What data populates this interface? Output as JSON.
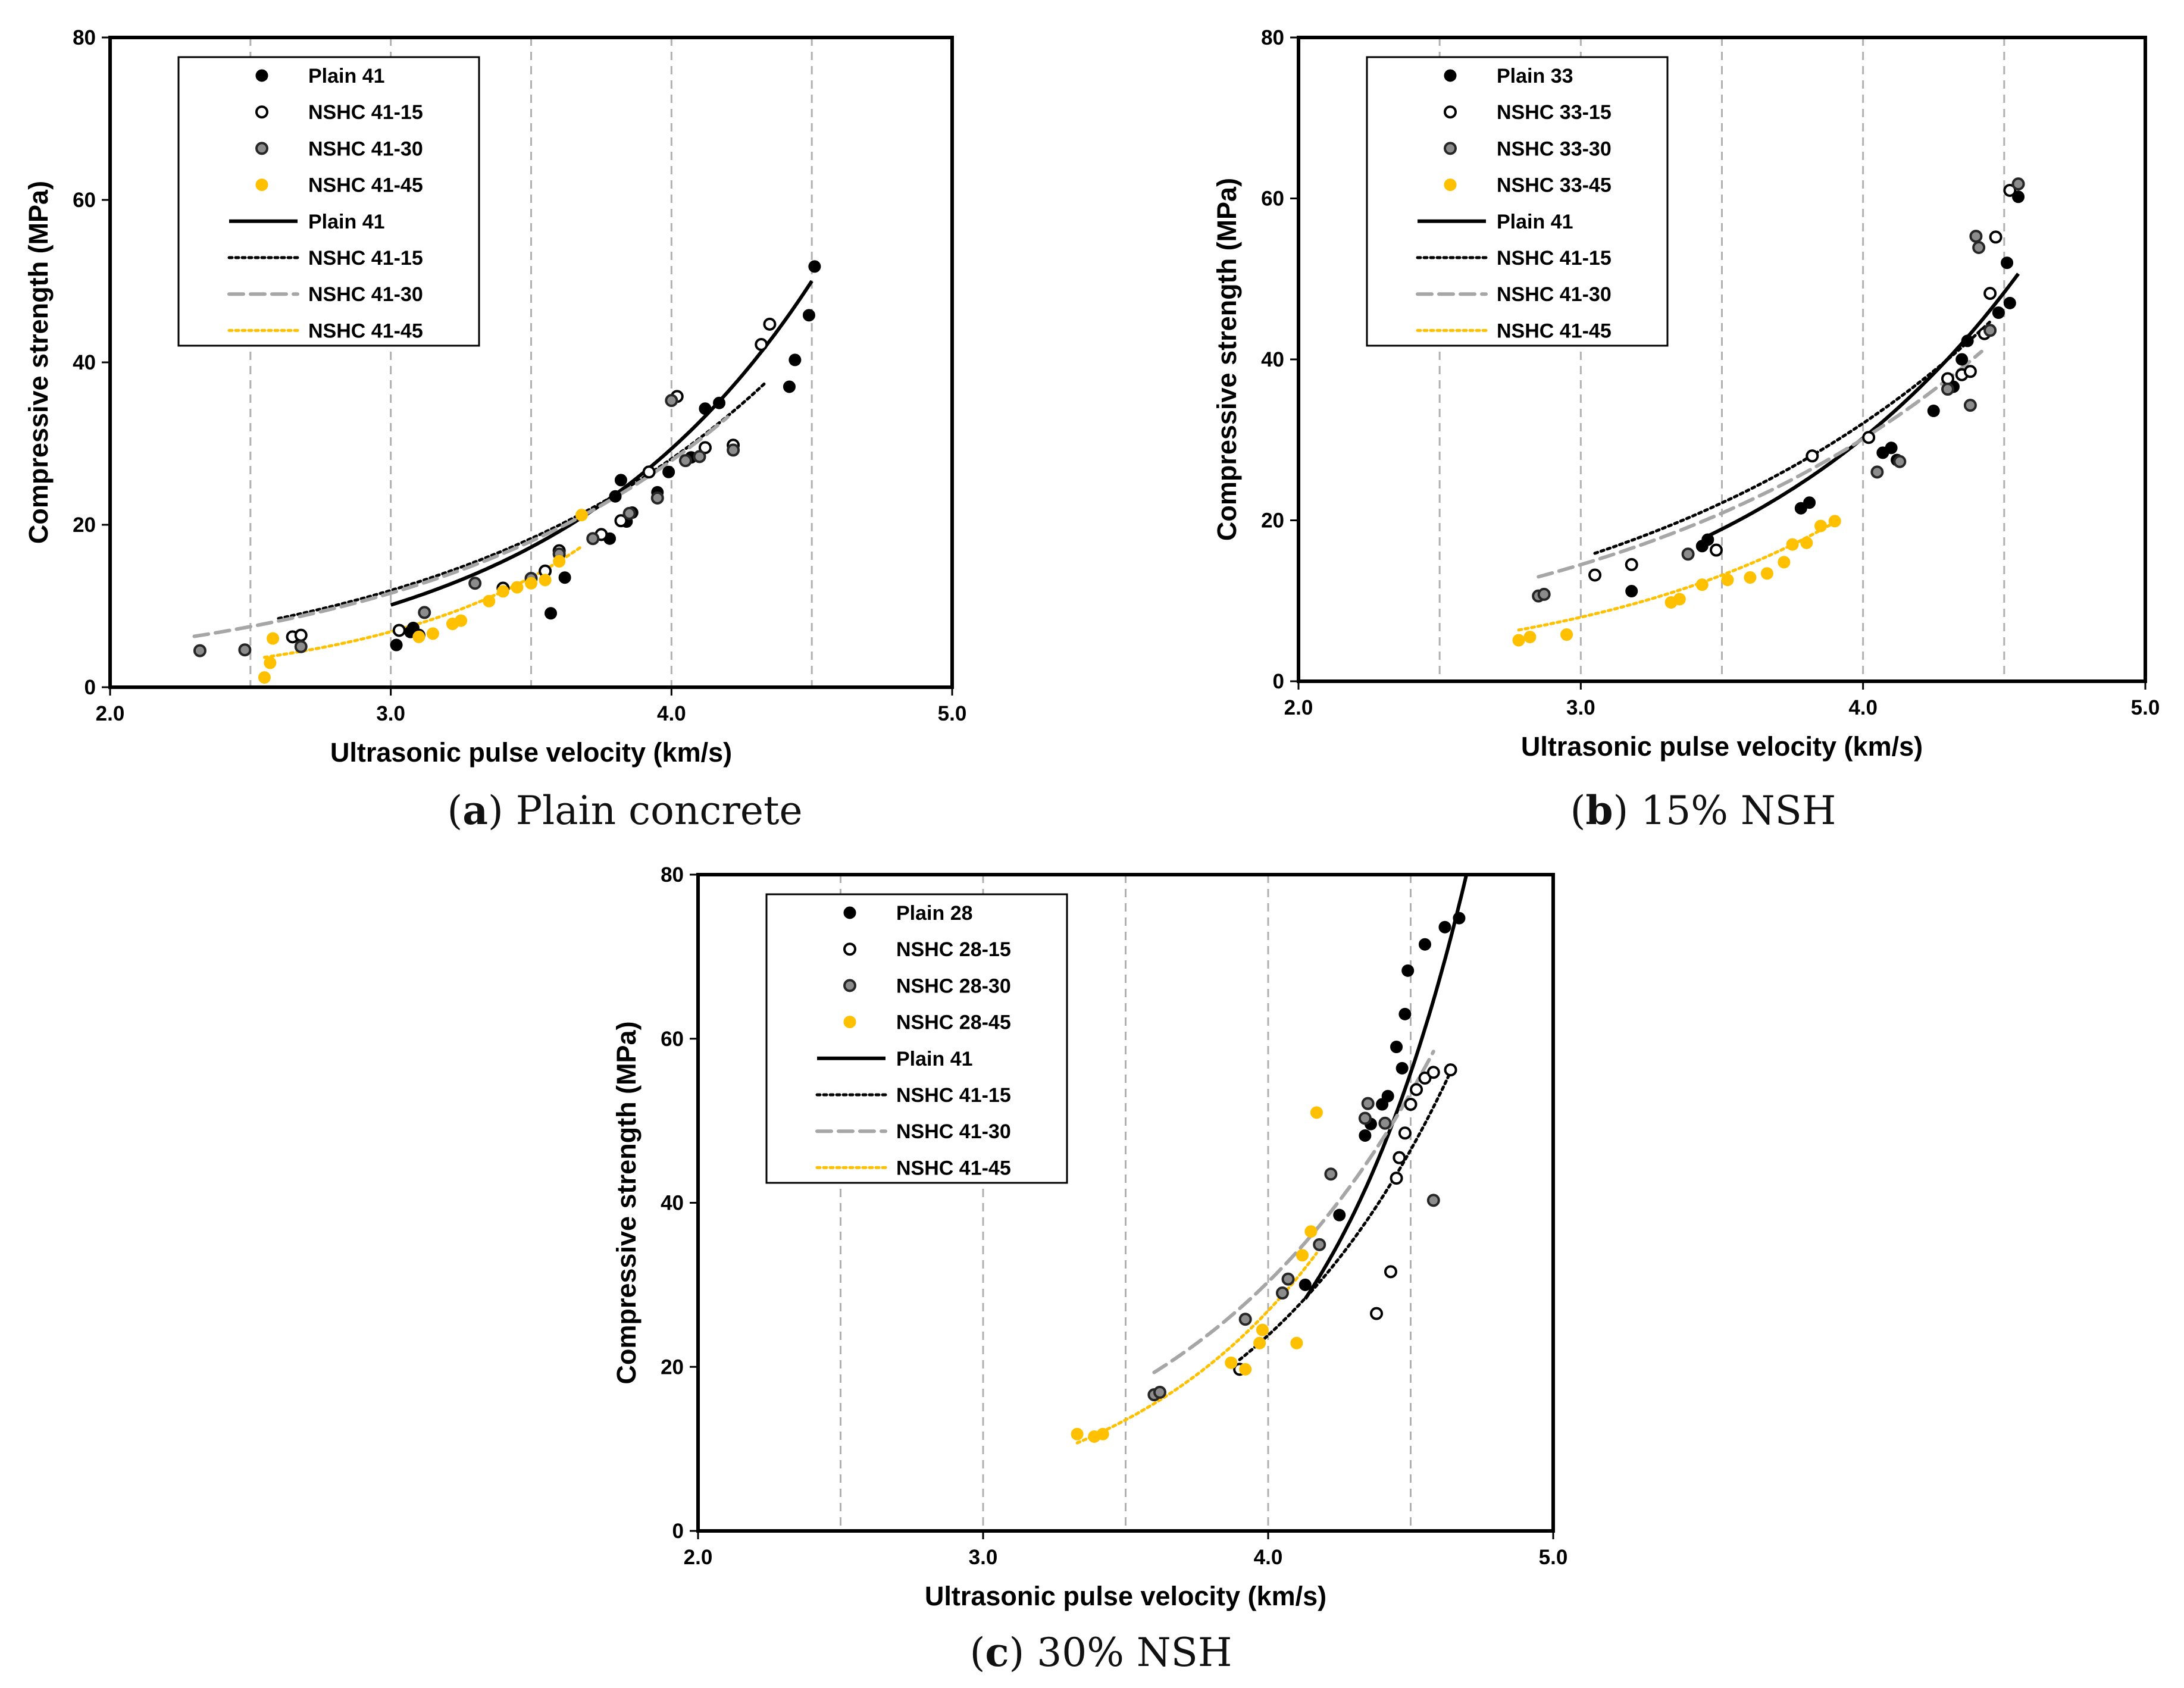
{
  "colors": {
    "black": "#000000",
    "gray": "#a6a6a6",
    "orange": "#ffc000",
    "grid": "#b0b0b0"
  },
  "chart_data": [
    {
      "type": "scatter",
      "caption": {
        "label": "a",
        "text": "Plain concrete"
      },
      "xlabel": "Ultrasonic pulse velocity (km/s)",
      "ylabel": "Compressive strength (MPa)",
      "xlim": [
        2.0,
        5.0
      ],
      "ylim": [
        0,
        80
      ],
      "xticks": [
        "2.0",
        "3.0",
        "4.0",
        "5.0"
      ],
      "yticks": [
        "0",
        "20",
        "40",
        "60",
        "80"
      ],
      "vgrid": [
        2.5,
        3.0,
        3.5,
        4.0,
        4.5
      ],
      "legend_position": "top-left",
      "series": [
        {
          "name": "Plain 41",
          "marker": "filled-black",
          "points": [
            [
              3.02,
              5.2
            ],
            [
              3.07,
              6.8
            ],
            [
              3.08,
              7.3
            ],
            [
              3.57,
              9.1
            ],
            [
              3.62,
              13.5
            ],
            [
              3.78,
              18.3
            ],
            [
              3.8,
              23.5
            ],
            [
              3.82,
              25.5
            ],
            [
              3.84,
              20.4
            ],
            [
              3.86,
              21.5
            ],
            [
              3.95,
              24
            ],
            [
              3.99,
              26.5
            ],
            [
              4.07,
              28.3
            ],
            [
              4.12,
              34.3
            ],
            [
              4.17,
              35
            ],
            [
              4.42,
              37
            ],
            [
              4.44,
              40.3
            ],
            [
              4.49,
              45.8
            ],
            [
              4.51,
              51.8
            ]
          ]
        },
        {
          "name": "NSHC 41-15",
          "marker": "open-black",
          "points": [
            [
              2.65,
              6.2
            ],
            [
              2.68,
              6.4
            ],
            [
              3.03,
              7
            ],
            [
              3.1,
              6.4
            ],
            [
              3.4,
              12.2
            ],
            [
              3.55,
              14.3
            ],
            [
              3.6,
              16.8
            ],
            [
              3.75,
              18.8
            ],
            [
              3.82,
              20.5
            ],
            [
              3.92,
              26.5
            ],
            [
              4.02,
              35.8
            ],
            [
              4.12,
              29.5
            ],
            [
              4.22,
              29.8
            ],
            [
              4.32,
              42.2
            ],
            [
              4.35,
              44.7
            ]
          ]
        },
        {
          "name": "NSHC 41-30",
          "marker": "gray-ring",
          "points": [
            [
              2.32,
              4.5
            ],
            [
              2.48,
              4.6
            ],
            [
              2.68,
              5
            ],
            [
              3.12,
              9.2
            ],
            [
              3.3,
              12.8
            ],
            [
              3.5,
              13.4
            ],
            [
              3.6,
              16.4
            ],
            [
              3.72,
              18.3
            ],
            [
              3.85,
              21.4
            ],
            [
              3.95,
              23.3
            ],
            [
              4.0,
              35.3
            ],
            [
              4.05,
              27.9
            ],
            [
              4.1,
              28.4
            ],
            [
              4.22,
              29.2
            ]
          ]
        },
        {
          "name": "NSHC 41-45",
          "marker": "filled-orange",
          "points": [
            [
              2.55,
              1.2
            ],
            [
              2.57,
              3
            ],
            [
              2.58,
              6
            ],
            [
              3.1,
              6.2
            ],
            [
              3.15,
              6.6
            ],
            [
              3.22,
              7.8
            ],
            [
              3.25,
              8.2
            ],
            [
              3.35,
              10.6
            ],
            [
              3.4,
              11.8
            ],
            [
              3.45,
              12.3
            ],
            [
              3.5,
              12.8
            ],
            [
              3.55,
              13.2
            ],
            [
              3.6,
              15.5
            ],
            [
              3.68,
              21.2
            ]
          ]
        }
      ],
      "fits": [
        {
          "name": "Plain 41",
          "style": "solid-black",
          "x": [
            3.0,
            4.5
          ],
          "a": 0.4154,
          "b": 1.0646
        },
        {
          "name": "NSHC 41-15",
          "style": "dotted-black",
          "x": [
            2.6,
            4.33
          ],
          "a": 0.9083,
          "b": 0.8582
        },
        {
          "name": "NSHC 41-30",
          "style": "dashed-gray",
          "x": [
            2.3,
            4.2
          ],
          "a": 0.8297,
          "b": 0.8788
        },
        {
          "name": "NSHC 41-45",
          "style": "dotted-orange",
          "x": [
            2.55,
            3.68
          ],
          "a": 0.1125,
          "b": 1.3686
        }
      ]
    },
    {
      "type": "scatter",
      "caption": {
        "label": "b",
        "text": "15% NSH"
      },
      "xlabel": "Ultrasonic pulse velocity (km/s)",
      "ylabel": "Compressive strength (MPa)",
      "xlim": [
        2.0,
        5.0
      ],
      "ylim": [
        0,
        80
      ],
      "xticks": [
        "2.0",
        "3.0",
        "4.0",
        "5.0"
      ],
      "yticks": [
        "0",
        "20",
        "40",
        "60",
        "80"
      ],
      "vgrid": [
        2.5,
        3.0,
        3.5,
        4.0,
        4.5
      ],
      "legend_position": "top-left",
      "series": [
        {
          "name": "Plain 33",
          "marker": "filled-black",
          "points": [
            [
              3.18,
              11.2
            ],
            [
              3.43,
              16.8
            ],
            [
              3.45,
              17.6
            ],
            [
              3.78,
              21.5
            ],
            [
              3.81,
              22.2
            ],
            [
              4.07,
              28.4
            ],
            [
              4.1,
              29
            ],
            [
              4.12,
              27.5
            ],
            [
              4.25,
              33.6
            ],
            [
              4.32,
              36.6
            ],
            [
              4.35,
              40
            ],
            [
              4.37,
              42.3
            ],
            [
              4.48,
              45.8
            ],
            [
              4.51,
              52
            ],
            [
              4.52,
              47
            ],
            [
              4.55,
              60.2
            ]
          ]
        },
        {
          "name": "NSHC 33-15",
          "marker": "open-black",
          "points": [
            [
              3.05,
              13.2
            ],
            [
              3.18,
              14.5
            ],
            [
              3.48,
              16.3
            ],
            [
              3.82,
              28
            ],
            [
              4.02,
              30.3
            ],
            [
              4.3,
              37.6
            ],
            [
              4.35,
              38.1
            ],
            [
              4.38,
              38.5
            ],
            [
              4.43,
              43.2
            ],
            [
              4.45,
              48.2
            ],
            [
              4.47,
              55.2
            ],
            [
              4.52,
              61
            ]
          ]
        },
        {
          "name": "NSHC 33-30",
          "marker": "gray-ring",
          "points": [
            [
              2.85,
              10.6
            ],
            [
              2.87,
              10.8
            ],
            [
              3.38,
              15.8
            ],
            [
              4.05,
              26
            ],
            [
              4.13,
              27.3
            ],
            [
              4.3,
              36.3
            ],
            [
              4.38,
              34.3
            ],
            [
              4.4,
              55.3
            ],
            [
              4.41,
              53.9
            ],
            [
              4.45,
              43.6
            ],
            [
              4.55,
              61.8
            ]
          ]
        },
        {
          "name": "NSHC 33-45",
          "marker": "filled-orange",
          "points": [
            [
              2.78,
              5.1
            ],
            [
              2.82,
              5.5
            ],
            [
              2.95,
              5.8
            ],
            [
              3.32,
              9.8
            ],
            [
              3.35,
              10.2
            ],
            [
              3.43,
              12
            ],
            [
              3.52,
              12.6
            ],
            [
              3.6,
              12.9
            ],
            [
              3.66,
              13.4
            ],
            [
              3.72,
              14.8
            ],
            [
              3.75,
              17
            ],
            [
              3.8,
              17.2
            ],
            [
              3.85,
              19.3
            ],
            [
              3.9,
              19.9
            ]
          ]
        }
      ],
      "fits": [
        {
          "name": "Plain 41",
          "style": "solid-black",
          "x": [
            3.45,
            4.55
          ],
          "a": 0.7089,
          "b": 0.9382
        },
        {
          "name": "NSHC 41-15",
          "style": "dotted-black",
          "x": [
            3.05,
            4.45
          ],
          "a": 1.6766,
          "b": 0.7377
        },
        {
          "name": "NSHC 41-30",
          "style": "dashed-gray",
          "x": [
            2.85,
            4.42
          ],
          "a": 1.6111,
          "b": 0.7322
        },
        {
          "name": "NSHC 41-45",
          "style": "dotted-orange",
          "x": [
            2.78,
            3.9
          ],
          "a": 0.3838,
          "b": 1.0106
        }
      ]
    },
    {
      "type": "scatter",
      "caption": {
        "label": "c",
        "text": "30% NSH"
      },
      "xlabel": "Ultrasonic pulse velocity (km/s)",
      "ylabel": "Compressive strength (MPa)",
      "xlim": [
        2.0,
        5.0
      ],
      "ylim": [
        0,
        80
      ],
      "xticks": [
        "2.0",
        "3.0",
        "4.0",
        "5.0"
      ],
      "yticks": [
        "0",
        "20",
        "40",
        "60",
        "80"
      ],
      "vgrid": [
        2.5,
        3.0,
        3.5,
        4.0,
        4.5
      ],
      "legend_position": "top-left",
      "series": [
        {
          "name": "Plain 28",
          "marker": "filled-black",
          "points": [
            [
              4.13,
              30
            ],
            [
              4.25,
              38.5
            ],
            [
              4.34,
              48.2
            ],
            [
              4.36,
              49.6
            ],
            [
              4.4,
              52
            ],
            [
              4.42,
              53
            ],
            [
              4.45,
              59
            ],
            [
              4.47,
              56.4
            ],
            [
              4.48,
              63
            ],
            [
              4.49,
              68.3
            ],
            [
              4.55,
              71.5
            ],
            [
              4.62,
              73.6
            ],
            [
              4.67,
              74.7
            ]
          ]
        },
        {
          "name": "NSHC 28-15",
          "marker": "open-black",
          "points": [
            [
              3.9,
              19.7
            ],
            [
              4.38,
              26.5
            ],
            [
              4.43,
              31.6
            ],
            [
              4.45,
              43
            ],
            [
              4.46,
              45.5
            ],
            [
              4.48,
              48.5
            ],
            [
              4.5,
              52
            ],
            [
              4.52,
              53.8
            ],
            [
              4.55,
              55.2
            ],
            [
              4.58,
              55.9
            ],
            [
              4.64,
              56.2
            ]
          ]
        },
        {
          "name": "NSHC 28-30",
          "marker": "gray-ring",
          "points": [
            [
              3.6,
              16.6
            ],
            [
              3.62,
              16.9
            ],
            [
              3.92,
              25.8
            ],
            [
              4.05,
              29
            ],
            [
              4.07,
              30.7
            ],
            [
              4.18,
              34.9
            ],
            [
              4.22,
              43.5
            ],
            [
              4.34,
              50.3
            ],
            [
              4.35,
              52.1
            ],
            [
              4.41,
              49.7
            ],
            [
              4.58,
              40.3
            ]
          ]
        },
        {
          "name": "NSHC 28-45",
          "marker": "filled-orange",
          "points": [
            [
              3.33,
              11.8
            ],
            [
              3.39,
              11.5
            ],
            [
              3.42,
              11.8
            ],
            [
              3.87,
              20.5
            ],
            [
              3.92,
              19.7
            ],
            [
              3.97,
              22.9
            ],
            [
              3.98,
              24.5
            ],
            [
              4.1,
              22.9
            ],
            [
              4.12,
              33.6
            ],
            [
              4.15,
              36.5
            ],
            [
              4.17,
              51
            ]
          ]
        }
      ],
      "fits": [
        {
          "name": "Plain 41",
          "style": "solid-black",
          "x": [
            4.13,
            4.7
          ],
          "a": 0.0143,
          "b": 1.8378
        },
        {
          "name": "NSHC 41-15",
          "style": "dotted-black",
          "x": [
            3.9,
            4.64
          ],
          "a": 0.1154,
          "b": 1.3328
        },
        {
          "name": "NSHC 41-30",
          "style": "dashed-gray",
          "x": [
            3.6,
            4.58
          ],
          "a": 0.3312,
          "b": 1.1295
        },
        {
          "name": "NSHC 41-45",
          "style": "dotted-orange",
          "x": [
            3.33,
            4.17
          ],
          "a": 0.1125,
          "b": 1.3686
        }
      ]
    }
  ]
}
